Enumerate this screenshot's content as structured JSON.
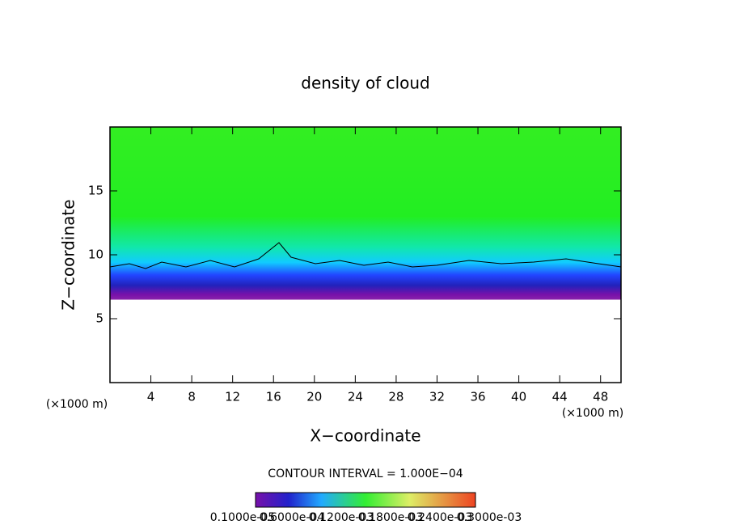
{
  "chart_data": {
    "type": "contour",
    "title": "density of cloud",
    "xlabel": "X−coordinate",
    "ylabel": "Z−coordinate",
    "x_unit_left": "(×1000 m)",
    "x_unit_right": "(×1000 m)",
    "xlim": [
      0,
      50
    ],
    "xticks": [
      4,
      8,
      12,
      16,
      20,
      24,
      28,
      32,
      36,
      40,
      44,
      48
    ],
    "ylim": [
      0,
      20
    ],
    "yticks": [
      5,
      10,
      15
    ],
    "contour_interval": "CONTOUR INTERVAL = 1.000E−04",
    "colorbar_labels": [
      "0.1000e-05",
      "0.6000e-04",
      "0.1200e-03",
      "0.1800e-03",
      "0.2400e-03",
      "0.3000e-03"
    ]
  }
}
